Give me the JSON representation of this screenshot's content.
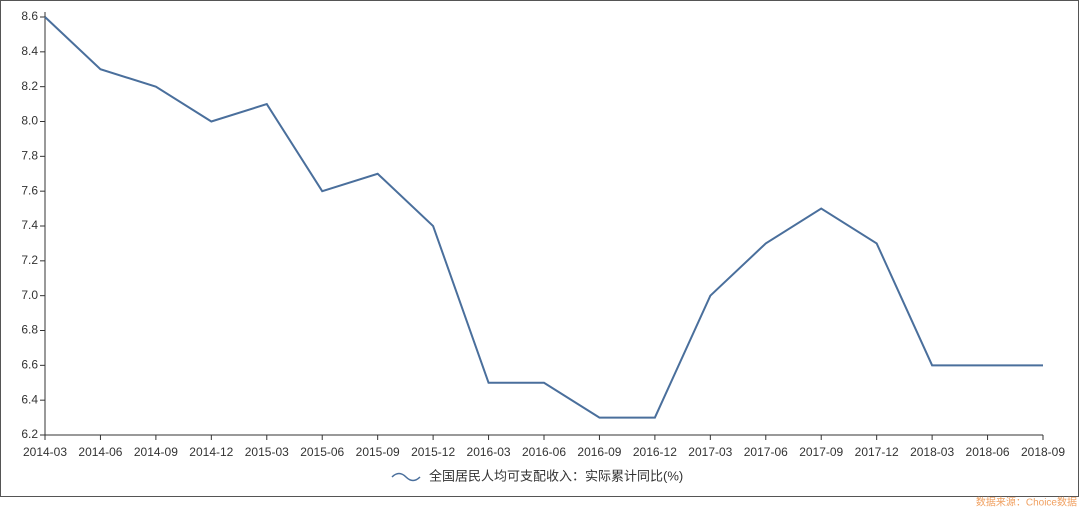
{
  "chart_data": {
    "type": "line",
    "categories": [
      "2014-03",
      "2014-06",
      "2014-09",
      "2014-12",
      "2015-03",
      "2015-06",
      "2015-09",
      "2015-12",
      "2016-03",
      "2016-06",
      "2016-09",
      "2016-12",
      "2017-03",
      "2017-06",
      "2017-09",
      "2017-12",
      "2018-03",
      "2018-06",
      "2018-09"
    ],
    "series": [
      {
        "name": "全国居民人均可支配收入：实际累计同比(%)",
        "color": "#4a6f9c",
        "values": [
          8.6,
          8.3,
          8.2,
          8.0,
          8.1,
          7.6,
          7.7,
          7.4,
          6.5,
          6.5,
          6.3,
          6.3,
          7.0,
          7.3,
          7.5,
          7.3,
          6.6,
          6.6,
          6.6
        ]
      }
    ],
    "ylim": [
      6.2,
      8.6
    ],
    "yticks": [
      6.2,
      6.4,
      6.6,
      6.8,
      {
        "value": 7,
        "label": "7.0"
      },
      7.2,
      7.4,
      7.6,
      7.8,
      {
        "value": 8,
        "label": "8.0"
      },
      8.2,
      8.4,
      8.6
    ],
    "legend": "bottom",
    "source": "数据来源：Choice数据"
  }
}
